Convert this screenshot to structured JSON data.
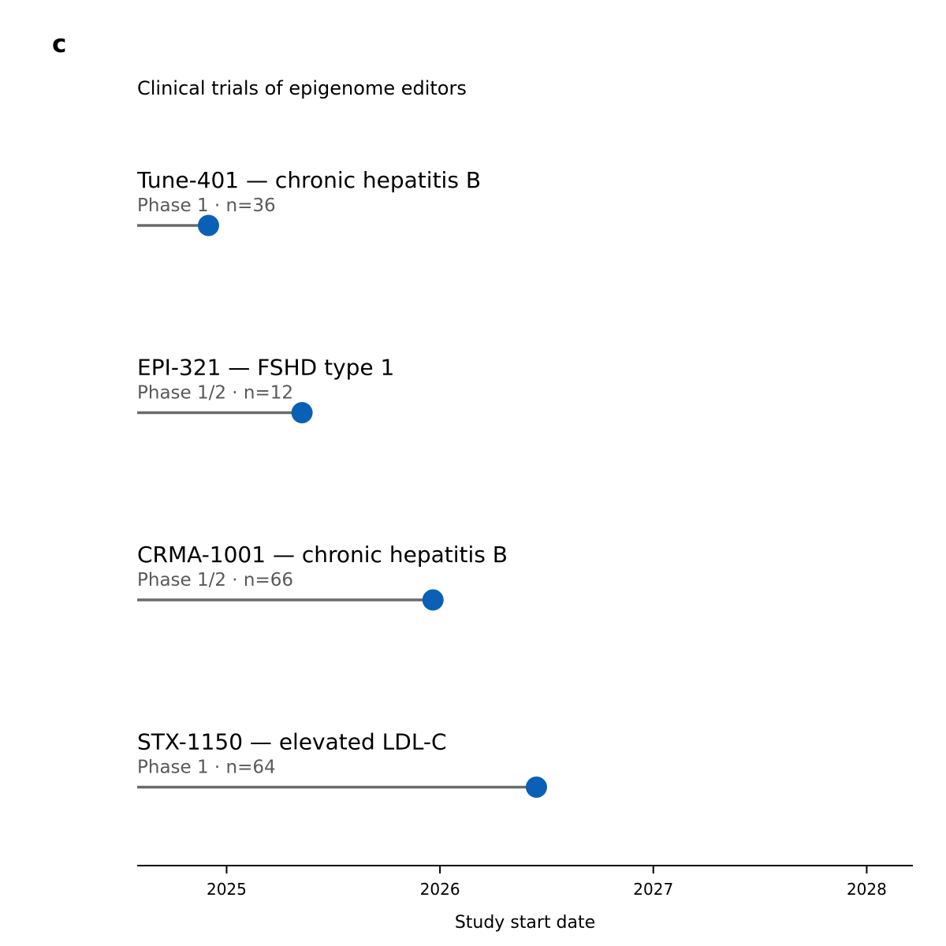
{
  "panel_label": "c",
  "chart_data": {
    "type": "lollipop",
    "title": "Clinical trials of epigenome editors",
    "xlabel": "Study start date",
    "ylabel": "",
    "x_axis": {
      "ticks": [
        "2025",
        "2026",
        "2027",
        "2028"
      ],
      "range": [
        "2024-08-01",
        "2028-03-20"
      ]
    },
    "grid": false,
    "colors": {
      "marker": "#0a60b5",
      "stem": "#6b6b6b",
      "axis": "#000000",
      "subtitle": "#595959"
    },
    "trials": [
      {
        "label": "Tune-401 — chronic hepatitis B",
        "sub": "Phase 1 · n=36",
        "start": "2024-12-01"
      },
      {
        "label": "EPI-321 — FSHD type 1",
        "sub": "Phase 1/2 · n=12",
        "start": "2025-05-10"
      },
      {
        "label": "CRMA-1001 — chronic hepatitis B",
        "sub": "Phase 1/2 · n=66",
        "start": "2025-12-20"
      },
      {
        "label": "STX-1150 — elevated LDL-C",
        "sub": "Phase 1 · n=64",
        "start": "2026-06-15"
      }
    ]
  }
}
